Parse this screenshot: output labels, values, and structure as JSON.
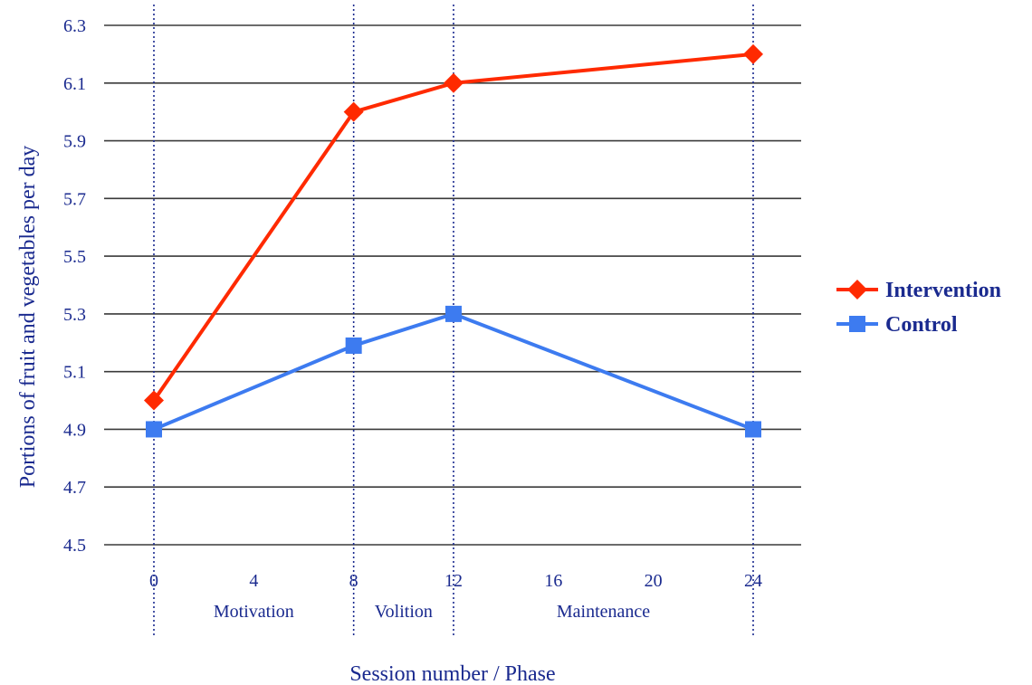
{
  "chart_data": {
    "type": "line",
    "xlabel": "Session number / Phase",
    "ylabel": "Portions of fruit and vegetables per day",
    "ylim": [
      4.5,
      6.3
    ],
    "yticks": [
      "4.5",
      "4.7",
      "4.9",
      "5.1",
      "5.3",
      "5.5",
      "5.7",
      "5.9",
      "6.1",
      "6.3"
    ],
    "xlim": [
      0,
      24
    ],
    "xticks": [
      "0",
      "4",
      "8",
      "12",
      "16",
      "20",
      "24"
    ],
    "phases": [
      {
        "label": "Motivation",
        "center": 4
      },
      {
        "label": "Volition",
        "center": 10
      },
      {
        "label": "Maintenance",
        "center": 18
      }
    ],
    "phase_boundaries": [
      0,
      8,
      12,
      24
    ],
    "grid": "horizontal",
    "legend_position": "right",
    "series": [
      {
        "name": "Intervention",
        "color": "#ff2a00",
        "marker": "diamond",
        "x": [
          0,
          8,
          12,
          24
        ],
        "values": [
          5.0,
          6.0,
          6.1,
          6.2
        ]
      },
      {
        "name": "Control",
        "color": "#3d7bf0",
        "marker": "square",
        "x": [
          0,
          8,
          12,
          24
        ],
        "values": [
          4.9,
          5.19,
          5.3,
          4.9
        ]
      }
    ]
  }
}
